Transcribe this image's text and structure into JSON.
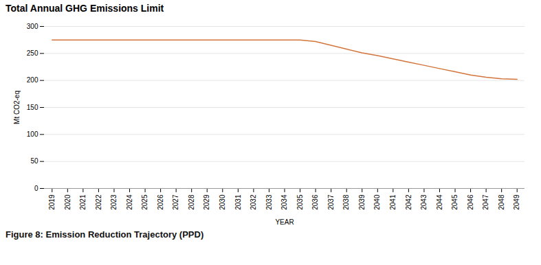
{
  "chart_data": {
    "type": "line",
    "title": "Total Annual GHG Emissions Limit",
    "caption": "Figure 8: Emission Reduction Trajectory (PPD)",
    "x_label": "YEAR",
    "y_label": "Mt CO2-eq",
    "x": [
      2019,
      2020,
      2021,
      2022,
      2023,
      2024,
      2025,
      2026,
      2027,
      2028,
      2029,
      2030,
      2031,
      2032,
      2033,
      2034,
      2035,
      2036,
      2037,
      2038,
      2039,
      2040,
      2041,
      2042,
      2043,
      2044,
      2045,
      2046,
      2047,
      2048,
      2049
    ],
    "values": [
      275,
      275,
      275,
      275,
      275,
      275,
      275,
      275,
      275,
      275,
      275,
      275,
      275,
      275,
      275,
      275,
      275,
      272,
      265,
      258,
      251,
      246,
      240,
      234,
      228,
      222,
      216,
      210,
      206,
      203,
      202
    ],
    "color": "#D4743A",
    "xlim": [
      2018.5,
      2049.5
    ],
    "xticks": [
      2019,
      2020,
      2021,
      2022,
      2023,
      2024,
      2025,
      2026,
      2027,
      2028,
      2029,
      2030,
      2031,
      2032,
      2033,
      2034,
      2035,
      2036,
      2037,
      2038,
      2039,
      2040,
      2041,
      2042,
      2043,
      2044,
      2045,
      2046,
      2047,
      2048,
      2049
    ],
    "ylim": [
      0,
      300
    ],
    "yticks": [
      0,
      50,
      100,
      150,
      200,
      250,
      300
    ],
    "grid": "y"
  }
}
